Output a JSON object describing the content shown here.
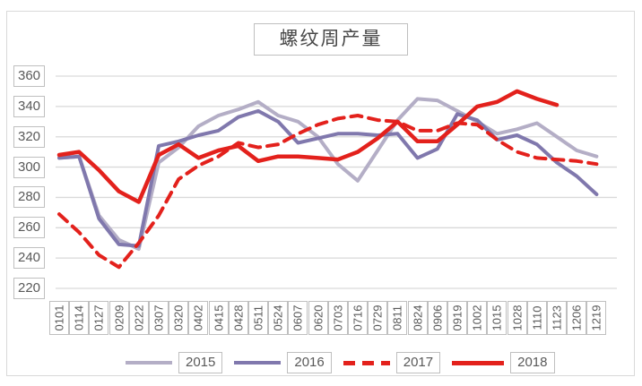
{
  "title": "螺纹周产量",
  "y_axis": {
    "ticks": [
      360,
      340,
      320,
      300,
      280,
      260,
      240,
      220
    ]
  },
  "x_axis": {
    "labels": [
      "0101",
      "0114",
      "0127",
      "0209",
      "0222",
      "0307",
      "0320",
      "0402",
      "0415",
      "0428",
      "0511",
      "0524",
      "0607",
      "0620",
      "0703",
      "0716",
      "0729",
      "0811",
      "0824",
      "0906",
      "0919",
      "1002",
      "1015",
      "1028",
      "1110",
      "1123",
      "1206",
      "1219"
    ]
  },
  "legend": {
    "labels": [
      "2015",
      "2016",
      "2017",
      "2018"
    ]
  },
  "colors": {
    "s2015": "#b4aec6",
    "s2016": "#8078ad",
    "s2017": "#e3211c",
    "s2018": "#e3211c",
    "grid": "#d9d9d9",
    "box_border": "#bfbfbf",
    "label_text": "#595959"
  },
  "chart_data": {
    "type": "line",
    "title": "螺纹周产量",
    "categories": [
      "0101",
      "0114",
      "0127",
      "0209",
      "0222",
      "0307",
      "0320",
      "0402",
      "0415",
      "0428",
      "0511",
      "0524",
      "0607",
      "0620",
      "0703",
      "0716",
      "0729",
      "0811",
      "0824",
      "0906",
      "0919",
      "1002",
      "1015",
      "1028",
      "1110",
      "1123",
      "1206",
      "1219"
    ],
    "series": [
      {
        "name": "2015",
        "color": "#b4aec6",
        "style": "solid",
        "values": [
          306,
          307,
          268,
          252,
          246,
          303,
          313,
          327,
          334,
          338,
          343,
          334,
          330,
          320,
          302,
          291,
          311,
          331,
          345,
          344,
          337,
          330,
          322,
          325,
          329,
          320,
          311,
          307
        ]
      },
      {
        "name": "2016",
        "color": "#8078ad",
        "style": "solid",
        "values": [
          306,
          307,
          266,
          249,
          248,
          314,
          317,
          321,
          324,
          333,
          337,
          330,
          316,
          319,
          322,
          322,
          321,
          322,
          306,
          312,
          335,
          331,
          318,
          321,
          315,
          303,
          294,
          282
        ]
      },
      {
        "name": "2017",
        "color": "#e3211c",
        "style": "dashed",
        "values": [
          269,
          257,
          242,
          234,
          250,
          268,
          292,
          301,
          307,
          316,
          313,
          315,
          322,
          328,
          332,
          334,
          331,
          330,
          324,
          324,
          329,
          328,
          318,
          310,
          306,
          305,
          304,
          302
        ]
      },
      {
        "name": "2018",
        "color": "#e3211c",
        "style": "solid",
        "values": [
          308,
          310,
          298,
          284,
          277,
          308,
          315,
          306,
          311,
          314,
          304,
          307,
          307,
          306,
          305,
          310,
          319,
          330,
          317,
          317,
          328,
          340,
          343,
          350,
          345,
          341,
          null,
          null
        ]
      }
    ],
    "ylim": [
      220,
      360
    ],
    "grid": true,
    "legend_position": "bottom"
  }
}
